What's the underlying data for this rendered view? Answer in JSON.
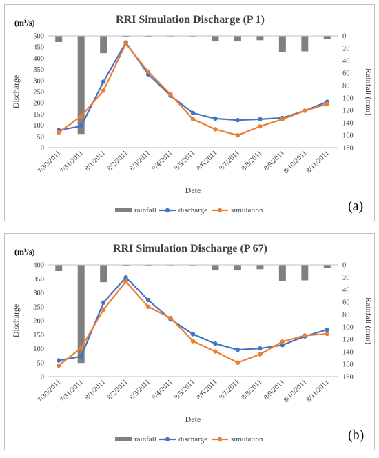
{
  "colors": {
    "rainfall": "#808080",
    "discharge": "#4472c4",
    "simulation": "#ed7d31",
    "axis": "#bfbfbf",
    "text": "#404040"
  },
  "chart_data": [
    {
      "type": "line",
      "panel_label": "(a)",
      "title": "RRI Simulation Discharge (P 1)",
      "unit_label": "(m³/s)",
      "xlabel": "Date",
      "ylabel": "Discharge",
      "y2label": "Rainfall (mm)",
      "categories": [
        "7/30/2011",
        "7/31/2011",
        "8/1/2011",
        "8/2/2011",
        "8/3/2011",
        "8/4/2011",
        "8/5/2011",
        "8/6/2011",
        "8/7/2011",
        "8/8/2011",
        "8/9/2011",
        "8/10/2011",
        "8/11/2011"
      ],
      "ylim": [
        0,
        500
      ],
      "yticks": [
        0,
        50,
        100,
        150,
        200,
        250,
        300,
        350,
        400,
        450,
        500
      ],
      "y2lim": [
        0,
        180
      ],
      "y2_inverted": true,
      "y2ticks": [
        0,
        20,
        40,
        60,
        80,
        100,
        120,
        140,
        160,
        180
      ],
      "legend_position": "bottom",
      "series": [
        {
          "name": "rainfall",
          "kind": "bar",
          "axis": "y2",
          "values": [
            10,
            158,
            28,
            2,
            1,
            0,
            0,
            9,
            9,
            7,
            26,
            25,
            5
          ]
        },
        {
          "name": "discharge",
          "kind": "line",
          "axis": "y",
          "values": [
            78,
            96,
            295,
            470,
            328,
            232,
            155,
            130,
            123,
            127,
            133,
            165,
            205
          ]
        },
        {
          "name": "simulation",
          "kind": "line",
          "axis": "y",
          "values": [
            68,
            140,
            255,
            465,
            340,
            238,
            127,
            82,
            55,
            95,
            127,
            165,
            195
          ]
        }
      ]
    },
    {
      "type": "line",
      "panel_label": "(b)",
      "title": "RRI Simulation Discharge (P 67)",
      "unit_label": "(m³/s)",
      "xlabel": "Date",
      "ylabel": "Discharge",
      "y2label": "Rainfall (mm)",
      "categories": [
        "7/30/2011",
        "7/31/2011",
        "8/1/2011",
        "8/2/2011",
        "8/3/2011",
        "8/4/2011",
        "8/5/2011",
        "8/6/2011",
        "8/7/2011",
        "8/8/2011",
        "8/9/2011",
        "8/10/2011",
        "8/11/2011"
      ],
      "ylim": [
        0,
        400
      ],
      "yticks": [
        0,
        50,
        100,
        150,
        200,
        250,
        300,
        350,
        400
      ],
      "y2lim": [
        0,
        180
      ],
      "y2_inverted": true,
      "y2ticks": [
        0,
        20,
        40,
        60,
        80,
        100,
        120,
        140,
        160,
        180
      ],
      "legend_position": "bottom",
      "series": [
        {
          "name": "rainfall",
          "kind": "bar",
          "axis": "y2",
          "values": [
            10,
            158,
            28,
            2,
            1,
            0,
            0,
            9,
            9,
            7,
            26,
            25,
            5
          ]
        },
        {
          "name": "discharge",
          "kind": "line",
          "axis": "y",
          "values": [
            58,
            72,
            265,
            355,
            274,
            205,
            152,
            118,
            96,
            101,
            113,
            144,
            168
          ]
        },
        {
          "name": "simulation",
          "kind": "line",
          "axis": "y",
          "values": [
            40,
            102,
            240,
            340,
            250,
            210,
            127,
            90,
            50,
            80,
            125,
            147,
            153
          ]
        }
      ]
    }
  ]
}
